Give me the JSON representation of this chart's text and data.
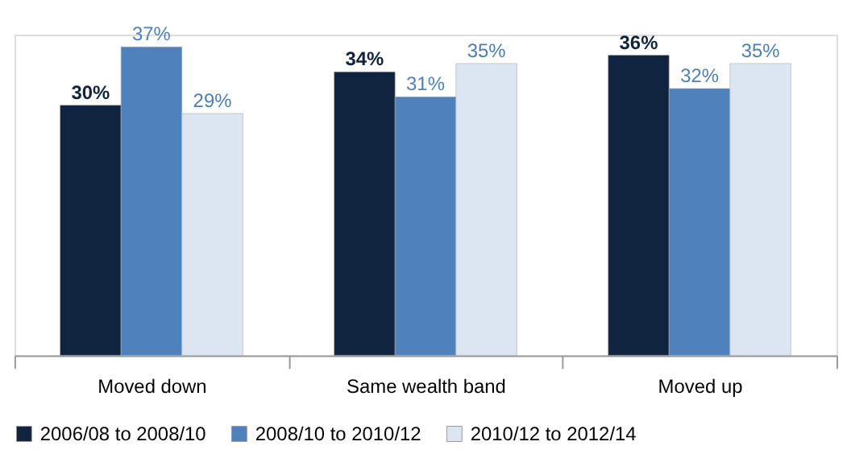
{
  "chart_data": {
    "type": "bar",
    "categories": [
      "Moved down",
      "Same wealth band",
      "Moved up"
    ],
    "series": [
      {
        "name": "2006/08 to 2008/10",
        "color": "#10243f",
        "values": [
          30,
          34,
          36
        ],
        "value_labels": [
          "30%",
          "34%",
          "36%"
        ]
      },
      {
        "name": "2008/10 to 2010/12",
        "color": "#4f81bd",
        "values": [
          37,
          31,
          32
        ],
        "value_labels": [
          "37%",
          "31%",
          "32%"
        ]
      },
      {
        "name": "2010/12 to 2012/14",
        "color": "#dce6f2",
        "values": [
          29,
          35,
          35
        ],
        "value_labels": [
          "29%",
          "35%",
          "35%"
        ]
      }
    ],
    "legend": "bottom"
  }
}
